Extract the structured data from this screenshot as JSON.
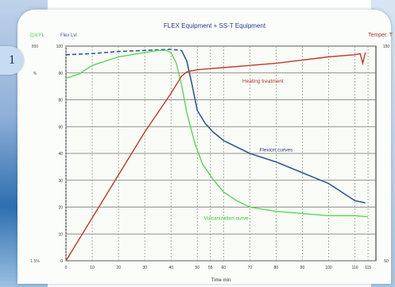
{
  "page": {
    "step_badge": "1"
  },
  "chart_data": {
    "type": "line",
    "title": "FLEX Equipment + SS-T Equipment",
    "left_axis_label_1": "Cnt FL",
    "left_axis_label_2": "Flex Lvl",
    "right_axis_label": "Temper. T",
    "xlabel": "Time min",
    "x": [
      0,
      10,
      20,
      30,
      40,
      50,
      55,
      60,
      70,
      80,
      90,
      100,
      110,
      115
    ],
    "x_range": [
      0,
      118
    ],
    "y_range": [
      0,
      100
    ],
    "grid": true,
    "annotations": [
      {
        "text": "Heating treatment",
        "x": 75,
        "y": 83,
        "color": "#b43324"
      },
      {
        "text": "Flexion curves",
        "x": 80,
        "y": 51,
        "color": "#2d3f86"
      },
      {
        "text": "Vulcanization curve",
        "x": 61,
        "y": 19,
        "color": "#35c43a"
      }
    ],
    "series": [
      {
        "name": "",
        "color": "#2f5d8c",
        "dashed_until": 44,
        "points": [
          [
            0,
            96
          ],
          [
            10,
            96.5
          ],
          [
            20,
            97.5
          ],
          [
            30,
            98
          ],
          [
            40,
            98.5
          ],
          [
            44,
            98
          ],
          [
            46,
            93
          ],
          [
            48,
            82
          ],
          [
            50,
            70
          ],
          [
            53,
            64
          ],
          [
            56,
            60
          ],
          [
            60,
            56
          ],
          [
            70,
            50
          ],
          [
            80,
            46
          ],
          [
            90,
            41
          ],
          [
            100,
            36
          ],
          [
            110,
            28
          ],
          [
            114,
            27
          ]
        ]
      },
      {
        "name": "",
        "color": "#58d858",
        "points": [
          [
            0,
            85
          ],
          [
            5,
            87
          ],
          [
            10,
            91
          ],
          [
            20,
            95
          ],
          [
            30,
            97
          ],
          [
            35,
            98
          ],
          [
            38,
            98
          ],
          [
            40,
            97
          ],
          [
            42,
            92
          ],
          [
            44,
            82
          ],
          [
            46,
            69
          ],
          [
            49,
            55
          ],
          [
            52,
            45
          ],
          [
            56,
            38
          ],
          [
            60,
            32
          ],
          [
            65,
            28
          ],
          [
            70,
            25
          ],
          [
            80,
            23
          ],
          [
            90,
            22
          ],
          [
            100,
            21
          ],
          [
            110,
            21
          ],
          [
            115,
            20.5
          ]
        ]
      },
      {
        "name": "",
        "color": "#c23a2a",
        "points": [
          [
            0,
            0
          ],
          [
            10,
            20
          ],
          [
            20,
            40
          ],
          [
            30,
            60
          ],
          [
            40,
            78
          ],
          [
            44,
            86
          ],
          [
            46,
            88
          ],
          [
            50,
            89
          ],
          [
            60,
            90
          ],
          [
            70,
            91
          ],
          [
            80,
            92
          ],
          [
            90,
            93.5
          ],
          [
            100,
            95
          ],
          [
            110,
            96
          ],
          [
            112,
            96.5
          ],
          [
            113,
            92
          ],
          [
            114,
            97
          ]
        ]
      }
    ],
    "y_ticks_left": [
      "800",
      "%",
      "",
      "",
      "",
      "",
      "",
      "",
      "1.5%"
    ],
    "y_ticks_inner": [
      "100",
      "90",
      "80",
      "60",
      "40",
      "30",
      "20",
      "10",
      "0"
    ],
    "y_ticks_right": [
      "150",
      "",
      "",
      "",
      "",
      "",
      "",
      "",
      "50"
    ],
    "x_ticks": [
      "0",
      "10",
      "20",
      "30",
      "40",
      "50",
      "55",
      "60",
      "70",
      "80",
      "90",
      "100",
      "110",
      "115"
    ]
  }
}
